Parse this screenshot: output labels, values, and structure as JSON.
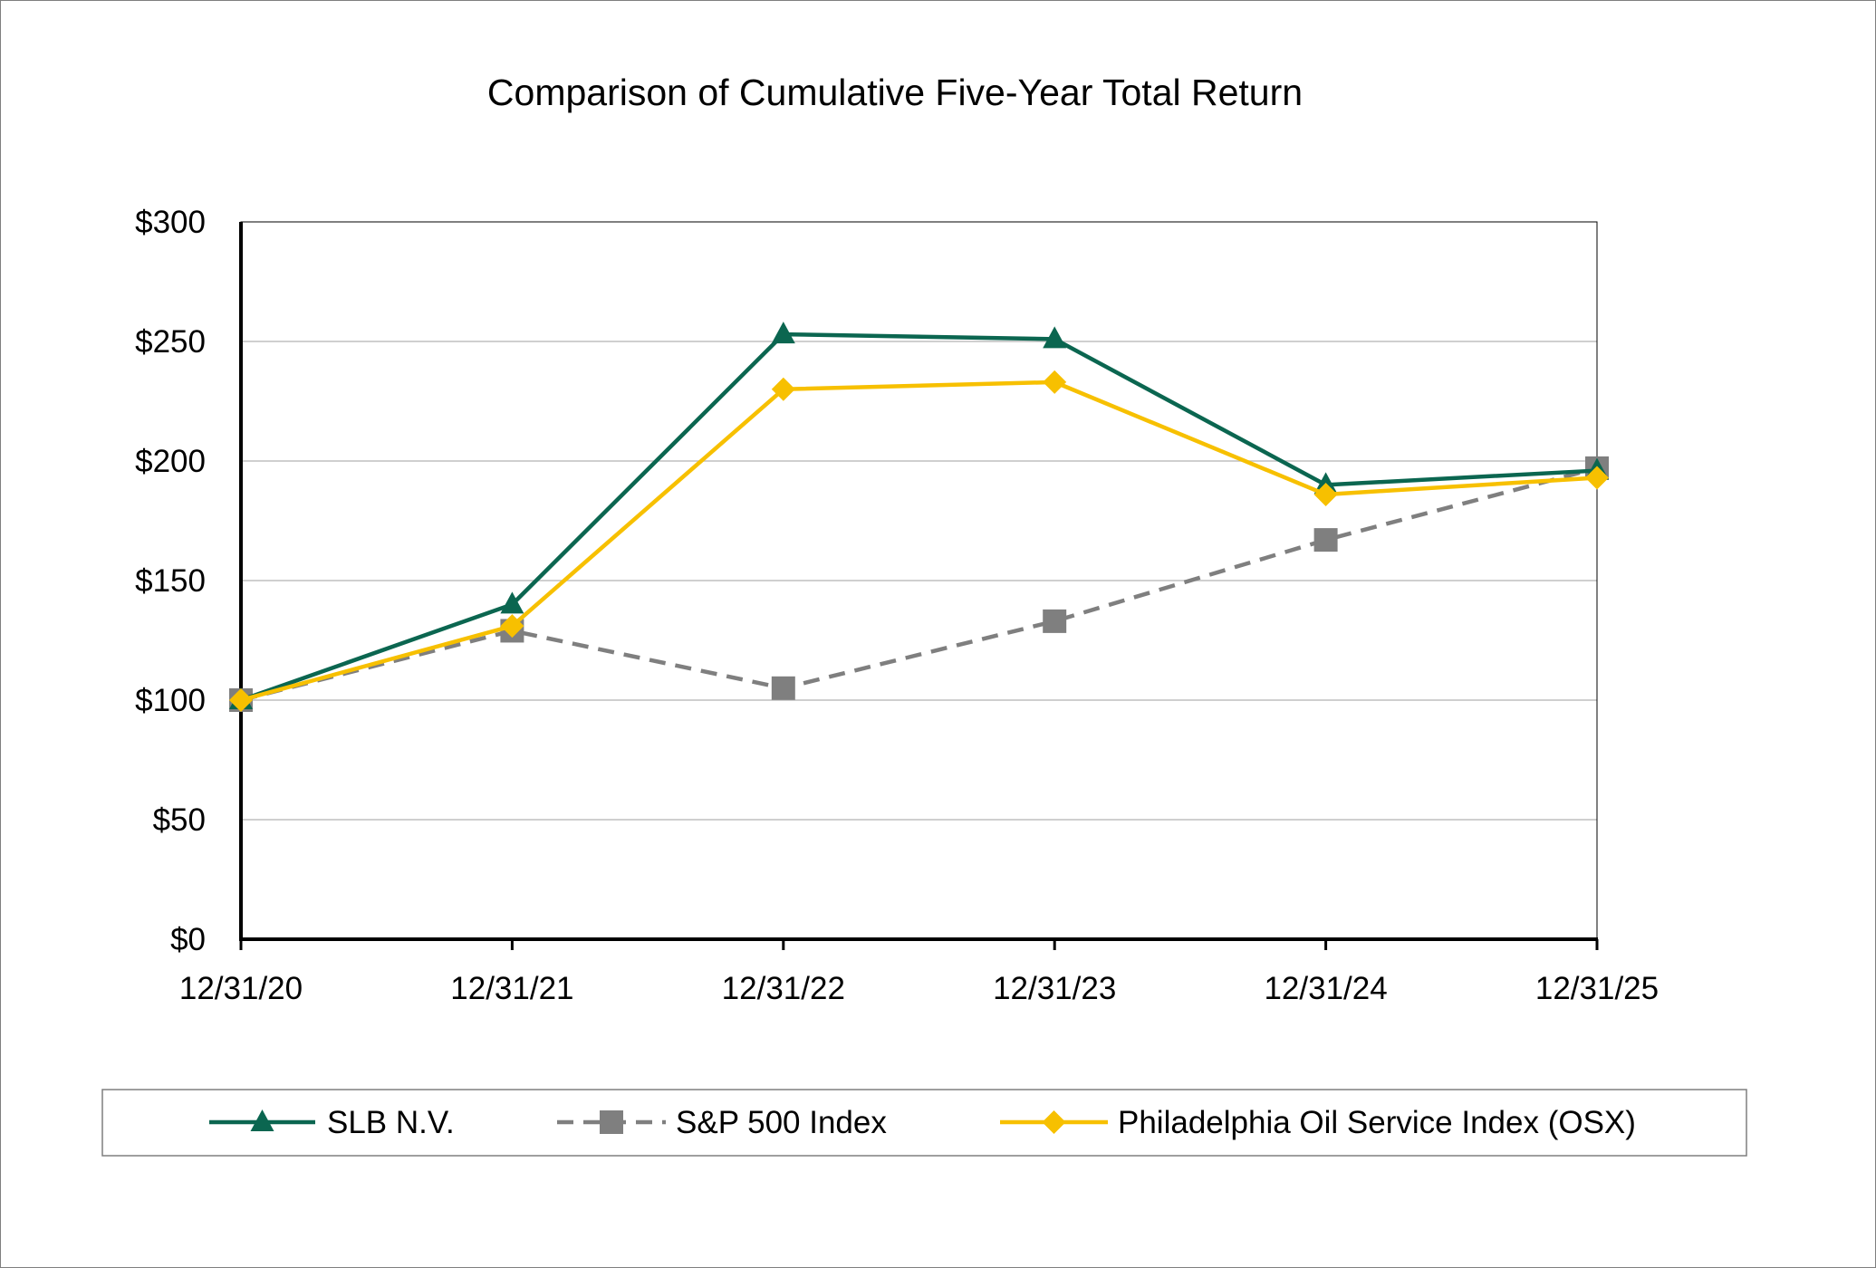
{
  "chart_data": {
    "type": "line",
    "title": "Comparison of Cumulative Five-Year Total Return",
    "xlabel": "",
    "ylabel": "",
    "categories": [
      "12/31/20",
      "12/31/21",
      "12/31/22",
      "12/31/23",
      "12/31/24",
      "12/31/25"
    ],
    "ylim": [
      0,
      300
    ],
    "yticks": [
      0,
      50,
      100,
      150,
      200,
      250,
      300
    ],
    "ytick_labels": [
      "$0",
      "$50",
      "$100",
      "$150",
      "$200",
      "$250",
      "$300"
    ],
    "grid": true,
    "legend_position": "bottom",
    "series": [
      {
        "name": "SLB N.V.",
        "values": [
          100,
          140,
          253,
          251,
          190,
          196
        ],
        "color": "#0b6650",
        "marker": "triangle",
        "dash": "solid"
      },
      {
        "name": "S&P 500 Index",
        "values": [
          100,
          129,
          105,
          133,
          167,
          197
        ],
        "color": "#7f7f7f",
        "marker": "square",
        "dash": "dashed"
      },
      {
        "name": "Philadelphia Oil Service Index (OSX)",
        "values": [
          100,
          131,
          230,
          233,
          186,
          193
        ],
        "color": "#f7c000",
        "marker": "diamond",
        "dash": "solid"
      }
    ]
  }
}
